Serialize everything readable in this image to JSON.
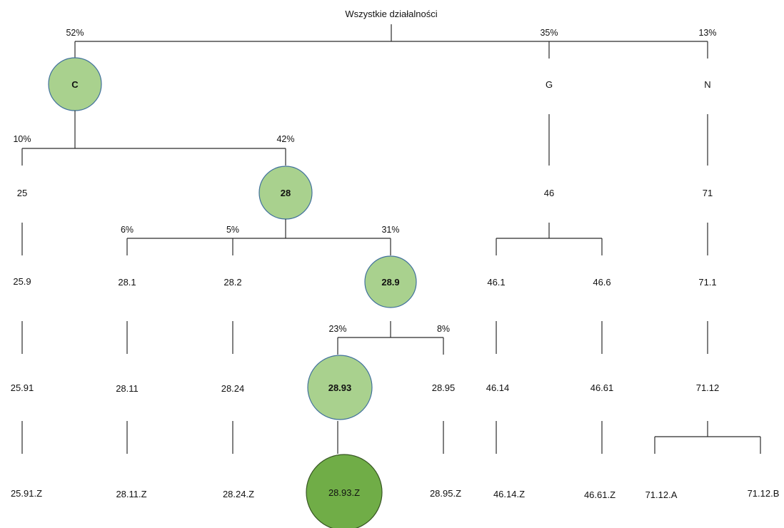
{
  "root": {
    "label": "Wszystkie działalności"
  },
  "colors": {
    "circle_light": "#a9d18e",
    "circle_dark": "#70ad47",
    "circle_stroke": "#41719c",
    "dark_stroke": "#375623",
    "line": "#2b2b2b"
  },
  "nodes": {
    "C": "C",
    "G": "G",
    "N": "N",
    "n25": "25",
    "n28": "28",
    "n46": "46",
    "n71": "71",
    "n25_9": "25.9",
    "n28_1": "28.1",
    "n28_2": "28.2",
    "n28_9": "28.9",
    "n46_1": "46.1",
    "n46_6": "46.6",
    "n71_1": "71.1",
    "n25_91": "25.91",
    "n28_11": "28.11",
    "n28_24": "28.24",
    "n28_93": "28.93",
    "n28_95": "28.95",
    "n46_14": "46.14",
    "n46_61": "46.61",
    "n71_12": "71.12",
    "n25_91Z": "25.91.Z",
    "n28_11Z": "28.11.Z",
    "n28_24Z": "28.24.Z",
    "n28_93Z": "28.93.Z",
    "n28_95Z": "28.95.Z",
    "n46_14Z": "46.14.Z",
    "n46_61Z": "46.61.Z",
    "n71_12A": "71.12.A",
    "n71_12B": "71.12.B"
  },
  "percentages": {
    "p_C": "52%",
    "p_G": "35%",
    "p_N": "13%",
    "p_25": "10%",
    "p_28": "42%",
    "p_28_1": "6%",
    "p_28_2": "5%",
    "p_28_9": "31%",
    "p_28_93": "23%",
    "p_28_95": "8%"
  }
}
